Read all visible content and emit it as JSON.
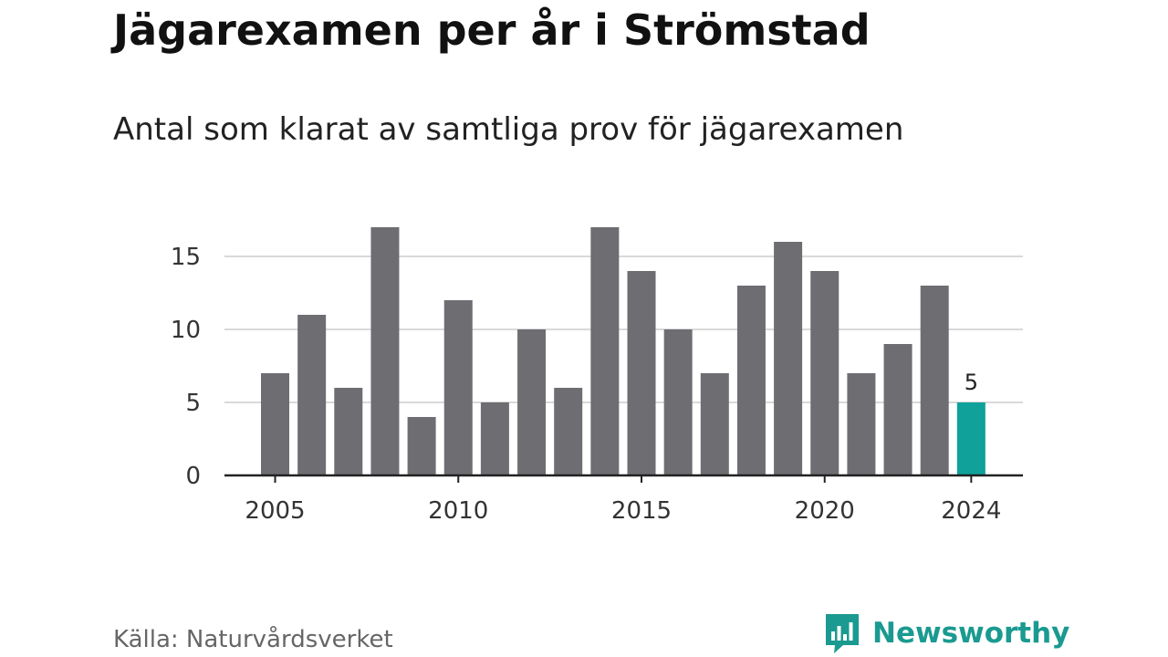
{
  "header": {
    "title": "Jägarexamen per år i Strömstad",
    "subtitle": "Antal som klarat av samtliga prov för jägarexamen"
  },
  "footer": {
    "source": "Källa: Naturvårdsverket",
    "brand": "Newsworthy",
    "brand_icon": "bar-chart-speech-bubble-icon"
  },
  "colors": {
    "bar": "#6e6d72",
    "highlight": "#0fa19a",
    "grid": "#d9d9d9",
    "axis": "#222222",
    "brand": "#1a9a90"
  },
  "chart_data": {
    "type": "bar",
    "title": "Jägarexamen per år i Strömstad",
    "subtitle": "Antal som klarat av samtliga prov för jägarexamen",
    "xlabel": "",
    "ylabel": "",
    "categories": [
      2005,
      2006,
      2007,
      2008,
      2009,
      2010,
      2011,
      2012,
      2013,
      2014,
      2015,
      2016,
      2017,
      2018,
      2019,
      2020,
      2021,
      2022,
      2023,
      2024
    ],
    "values": [
      7,
      11,
      6,
      17,
      4,
      12,
      5,
      10,
      6,
      17,
      14,
      10,
      7,
      13,
      16,
      14,
      7,
      9,
      13,
      5
    ],
    "highlight_index": 19,
    "data_labels": [
      {
        "index": 19,
        "text": "5"
      }
    ],
    "x_ticks": [
      "2005",
      "2010",
      "2015",
      "2020",
      "2024"
    ],
    "y_ticks": [
      "0",
      "5",
      "10",
      "15"
    ],
    "ylim": [
      0,
      17
    ],
    "grid": true,
    "legend": "none"
  }
}
